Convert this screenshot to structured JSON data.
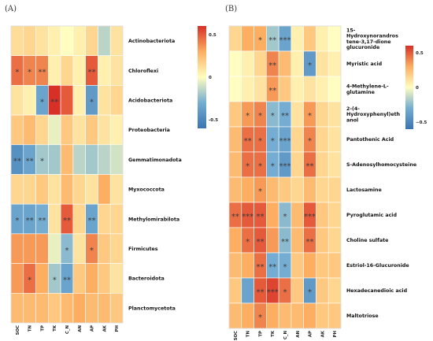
{
  "chart_data": [
    {
      "type": "heatmap",
      "panel_label": "(A)",
      "columns": [
        "SOC",
        "TN",
        "TP",
        "TK",
        "C_N",
        "AN",
        "AP",
        "AK",
        "PH"
      ],
      "rows": [
        "Actinobacteriota",
        "Chloroflexi",
        "Acidobacteriota",
        "Proteobacteria",
        "Gemmatimonadota",
        "Myxococcota",
        "Methylomirabilota",
        "Firmicutes",
        "Bacteroidota",
        "Planctomycetota"
      ],
      "values": [
        [
          0.12,
          0.15,
          0.1,
          0.05,
          0.0,
          0.05,
          0.15,
          -0.15,
          0.1
        ],
        [
          0.45,
          0.4,
          0.4,
          0.05,
          0.15,
          0.05,
          0.5,
          0.05,
          0.1
        ],
        [
          0.1,
          0.05,
          -0.35,
          0.6,
          0.5,
          0.05,
          -0.4,
          0.1,
          0.15
        ],
        [
          0.2,
          0.25,
          0.15,
          -0.05,
          0.2,
          0.1,
          0.2,
          0.1,
          0.05
        ],
        [
          -0.45,
          -0.35,
          -0.2,
          -0.2,
          0.25,
          -0.15,
          -0.2,
          -0.15,
          -0.1
        ],
        [
          0.15,
          0.15,
          0.2,
          0.1,
          0.25,
          0.15,
          0.1,
          0.3,
          0.1
        ],
        [
          -0.35,
          -0.35,
          -0.3,
          0.1,
          0.5,
          0.15,
          -0.35,
          0.15,
          0.15
        ],
        [
          0.35,
          0.35,
          0.35,
          -0.05,
          -0.25,
          0.1,
          0.4,
          0.2,
          0.15
        ],
        [
          0.35,
          0.45,
          0.3,
          -0.2,
          -0.35,
          0.2,
          0.3,
          0.2,
          0.1
        ],
        [
          0.25,
          0.25,
          0.25,
          0.2,
          0.25,
          0.3,
          0.25,
          0.25,
          0.2
        ]
      ],
      "stars": [
        [
          "",
          "",
          "",
          "",
          "",
          "",
          "",
          "",
          ""
        ],
        [
          "*",
          "*",
          "**",
          "",
          "",
          "",
          "**",
          "",
          ""
        ],
        [
          "",
          "",
          "*",
          "**",
          "",
          "",
          "*",
          "",
          ""
        ],
        [
          "",
          "",
          "",
          "",
          "",
          "",
          "",
          "",
          ""
        ],
        [
          "**",
          "**",
          "*",
          "",
          "",
          "",
          "",
          "",
          ""
        ],
        [
          "",
          "",
          "",
          "",
          "",
          "",
          "",
          "",
          ""
        ],
        [
          "*",
          "**",
          "**",
          "",
          "**",
          "",
          "**",
          "",
          ""
        ],
        [
          "",
          "",
          "",
          "",
          "*",
          "",
          "*",
          "",
          ""
        ],
        [
          "",
          "*",
          "",
          "*",
          "**",
          "",
          "",
          "",
          ""
        ],
        [
          "",
          "",
          "",
          "",
          "",
          "",
          "",
          "",
          ""
        ]
      ],
      "color_scale": {
        "ticks": [
          0.5,
          0,
          -0.5
        ],
        "tick_labels": [
          "0.5",
          "0",
          "-0.5"
        ],
        "colors": [
          "#3a74b3",
          "#74add1",
          "#fffdbf",
          "#fdae61",
          "#d73027"
        ]
      }
    },
    {
      "type": "heatmap",
      "panel_label": "(B)",
      "columns": [
        "SOC",
        "TN",
        "TP",
        "TK",
        "C_N",
        "AN",
        "AP",
        "AK",
        "PH"
      ],
      "rows": [
        "15-Hydroxynorandrostene-3,17-dione glucuronide",
        "Myristic acid",
        "4-Methylene-L-glutamine",
        "2-(4-Hydroxyphenyl)ethanol",
        "Pantothenic Acid",
        "S-Adenosylhomocysteine",
        "Lactosamine",
        "Pyroglutamic acid",
        "Choline sulfate",
        "Estriol-16-Glucuronide",
        "Hexadecanedioic acid",
        "Maltotriose"
      ],
      "row_lines": [
        [
          "15-",
          "Hydroxynorandros",
          "tene-3,17-dione",
          "glucuronide"
        ],
        [
          "Myristic acid"
        ],
        [
          "4-Methylene-L-",
          "glutamine"
        ],
        [
          "2-(4-",
          "Hydroxyphenyl)eth",
          "anol"
        ],
        [
          "Pantothenic Acid"
        ],
        [
          "S-Adenosylhomocysteine"
        ],
        [
          "Lactosamine"
        ],
        [
          "Pyroglutamic acid"
        ],
        [
          "Choline sulfate"
        ],
        [
          "Estriol-16-Glucuronide"
        ],
        [
          "Hexadecanedioic acid"
        ],
        [
          "Maltotriose"
        ]
      ],
      "values": [
        [
          0.15,
          0.3,
          0.3,
          -0.2,
          -0.35,
          0.05,
          0.2,
          0.05,
          0.0
        ],
        [
          0.0,
          0.05,
          0.15,
          0.4,
          0.25,
          0.05,
          -0.4,
          0.1,
          0.05
        ],
        [
          0.0,
          0.05,
          0.1,
          0.35,
          0.2,
          0.05,
          0.1,
          0.05,
          0.0
        ],
        [
          0.2,
          0.35,
          0.4,
          -0.25,
          -0.3,
          0.1,
          0.35,
          0.15,
          0.1
        ],
        [
          0.25,
          0.45,
          0.45,
          -0.3,
          -0.35,
          0.15,
          0.4,
          0.15,
          0.1
        ],
        [
          0.25,
          0.45,
          0.45,
          -0.3,
          -0.4,
          0.15,
          0.45,
          0.15,
          0.1
        ],
        [
          0.25,
          0.3,
          0.35,
          0.25,
          0.2,
          0.15,
          0.25,
          0.15,
          0.15
        ],
        [
          0.45,
          0.5,
          0.5,
          0.3,
          -0.25,
          0.25,
          0.5,
          0.2,
          0.15
        ],
        [
          0.3,
          0.45,
          0.5,
          0.35,
          -0.25,
          0.25,
          0.45,
          0.2,
          0.15
        ],
        [
          0.25,
          0.3,
          0.45,
          -0.3,
          -0.3,
          0.2,
          0.3,
          0.2,
          0.2
        ],
        [
          0.2,
          -0.35,
          0.5,
          0.55,
          0.45,
          0.2,
          -0.4,
          0.2,
          0.15
        ],
        [
          0.25,
          0.3,
          0.4,
          0.3,
          0.25,
          0.25,
          0.3,
          0.2,
          0.2
        ]
      ],
      "stars": [
        [
          "",
          "",
          "*",
          "**",
          "***",
          "",
          "",
          "",
          ""
        ],
        [
          "",
          "",
          "",
          "**",
          "",
          "",
          "*",
          "",
          ""
        ],
        [
          "",
          "",
          "",
          "**",
          "",
          "",
          "",
          "",
          ""
        ],
        [
          "",
          "*",
          "*",
          "*",
          "**",
          "",
          "*",
          "",
          ""
        ],
        [
          "",
          "**",
          "*",
          "*",
          "***",
          "",
          "*",
          "",
          ""
        ],
        [
          "",
          "*",
          "*",
          "*",
          "***",
          "",
          "**",
          "",
          ""
        ],
        [
          "",
          "",
          "*",
          "",
          "",
          "",
          "",
          "",
          ""
        ],
        [
          "**",
          "***",
          "**",
          "",
          "*",
          "",
          "***",
          "",
          ""
        ],
        [
          "",
          "*",
          "**",
          "",
          "**",
          "",
          "**",
          "",
          ""
        ],
        [
          "",
          "",
          "**",
          "**",
          "*",
          "",
          "",
          "",
          ""
        ],
        [
          "",
          "",
          "**",
          "***",
          "*",
          "",
          "*",
          "",
          ""
        ],
        [
          "",
          "",
          "*",
          "",
          "",
          "",
          "",
          "",
          ""
        ]
      ],
      "color_scale": {
        "ticks": [
          0.5,
          0,
          -0.5
        ],
        "tick_labels": [
          "0.5",
          "0",
          "−0.5"
        ],
        "colors": [
          "#3a74b3",
          "#74add1",
          "#fffdbf",
          "#fdae61",
          "#d73027"
        ]
      }
    }
  ]
}
